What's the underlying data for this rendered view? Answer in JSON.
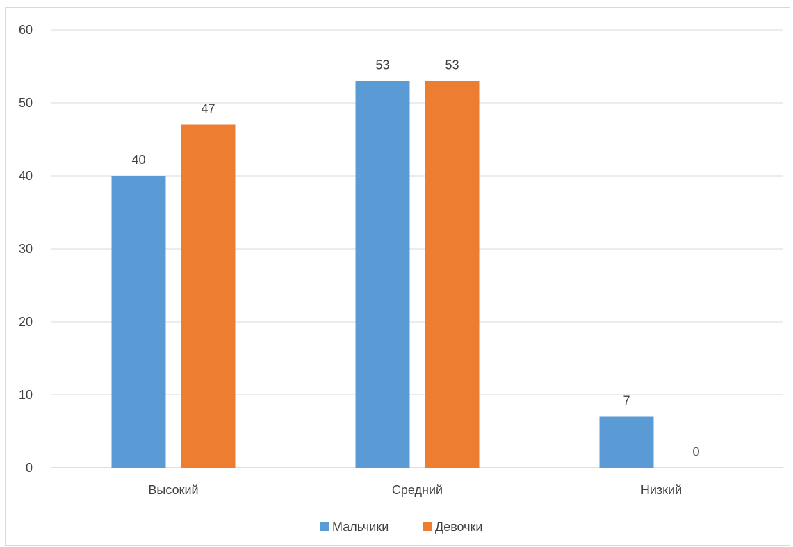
{
  "chart_data": {
    "type": "bar",
    "categories": [
      "Высокий",
      "Средний",
      "Низкий"
    ],
    "series": [
      {
        "name": "Мальчики",
        "values": [
          40,
          53,
          7
        ],
        "color": "#5B9BD5"
      },
      {
        "name": "Девочки",
        "values": [
          47,
          53,
          0
        ],
        "color": "#ED7D31"
      }
    ],
    "ylim": [
      0,
      60
    ],
    "yticks": [
      0,
      10,
      20,
      30,
      40,
      50,
      60
    ],
    "grid": true,
    "data_labels": true,
    "legend_position": "bottom",
    "gridline_color": "#d9d9d9",
    "axis_color": "#bfbfbf"
  }
}
